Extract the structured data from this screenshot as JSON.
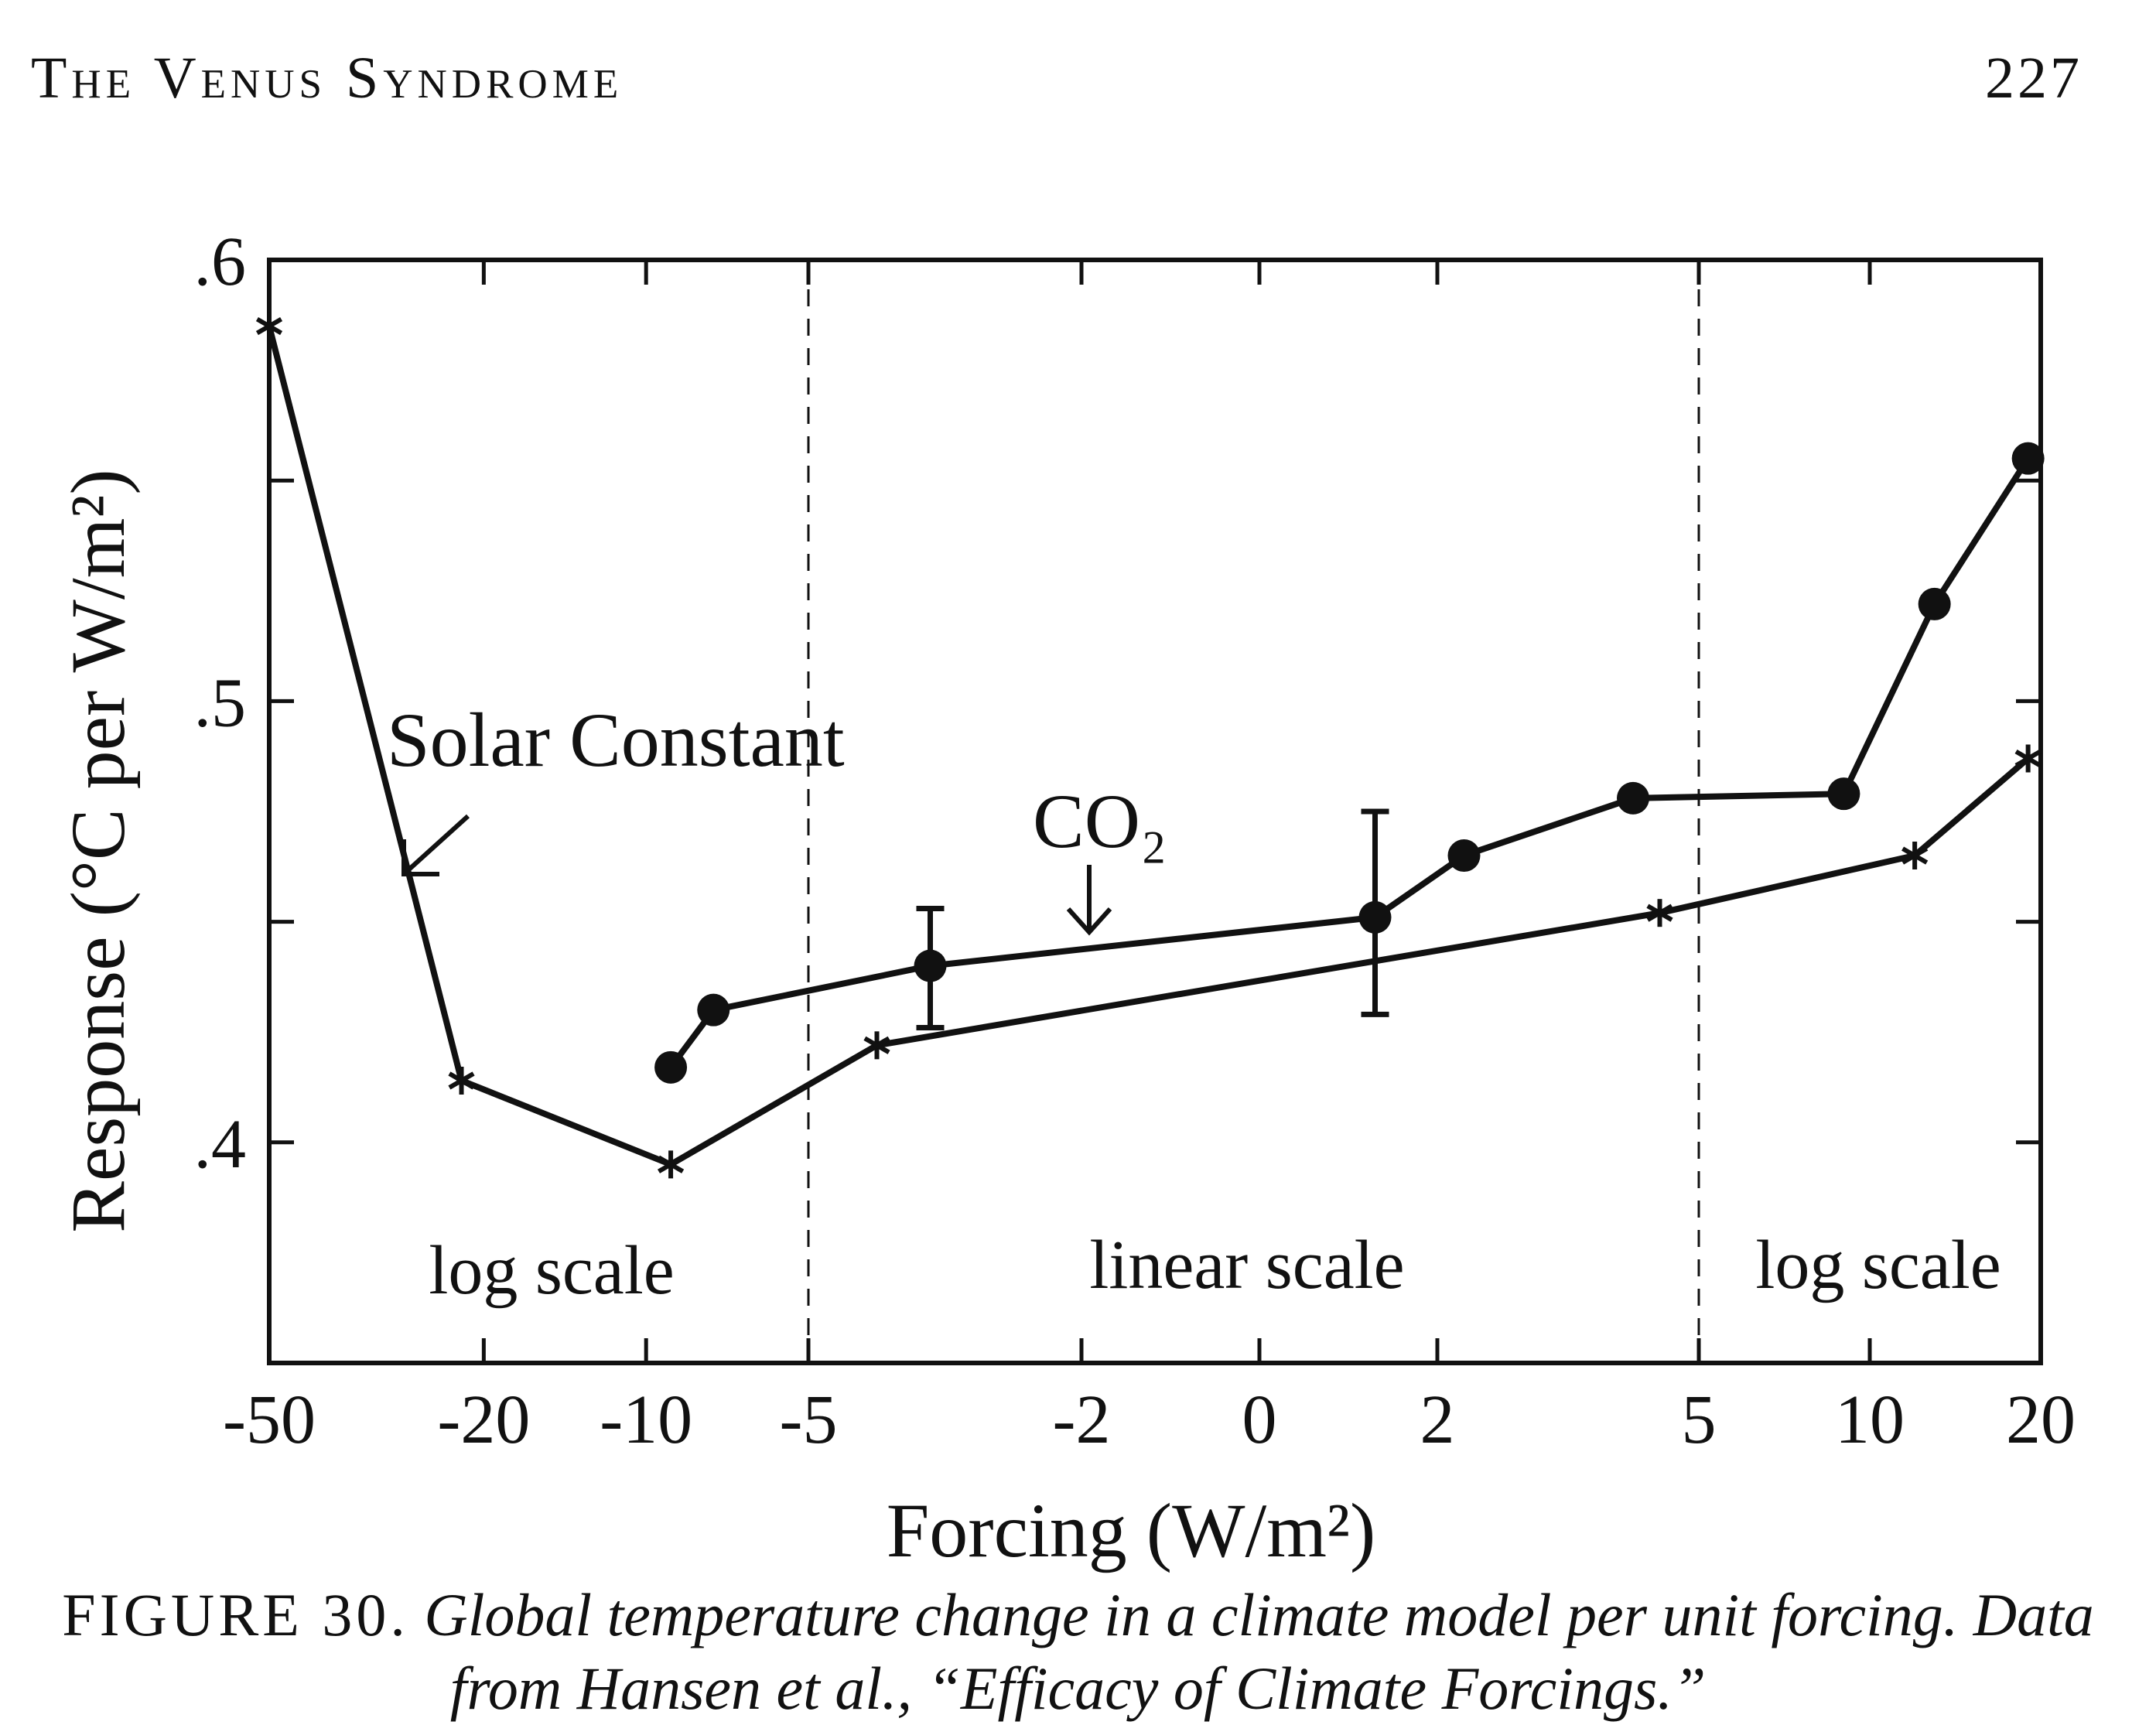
{
  "header": {
    "running_title": "The Venus Syndrome",
    "page_number": "227"
  },
  "chart_data": {
    "type": "line",
    "title": "",
    "xlabel": "Forcing (W/m²)",
    "ylabel": "Response (°C per W/m²)",
    "ylim": [
      0.35,
      0.6
    ],
    "y_ticks": [
      ".4",
      ".5",
      ".6"
    ],
    "x_tick_labels": [
      "-50",
      "-20",
      "-10",
      "-5",
      "-2",
      "0",
      "2",
      "5",
      "10",
      "20"
    ],
    "x_tick_values": [
      -50,
      -20,
      -10,
      -5,
      -2,
      0,
      2,
      5,
      10,
      20
    ],
    "x_axis_note": "piecewise: log scale for F ≤ -5 and F ≥ 5, linear scale between -5 and 5",
    "region_labels": [
      "log scale",
      "linear scale",
      "log scale"
    ],
    "grid": false,
    "series": [
      {
        "name": "Solar Constant",
        "marker": "asterisk",
        "x": [
          -50,
          -22,
          -9,
          -4.3,
          4.5,
          12,
          19
        ],
        "y": [
          0.585,
          0.414,
          0.395,
          0.422,
          0.452,
          0.465,
          0.487
        ]
      },
      {
        "name": "CO₂",
        "marker": "circle",
        "x": [
          -9,
          -7.5,
          -3.7,
          1.3,
          2.3,
          4.2,
          9,
          13,
          19
        ],
        "y": [
          0.417,
          0.43,
          0.44,
          0.451,
          0.465,
          0.478,
          0.479,
          0.522,
          0.555
        ],
        "error_bars": [
          {
            "x": -3.7,
            "low": 0.426,
            "high": 0.453
          },
          {
            "x": 1.3,
            "low": 0.429,
            "high": 0.475
          }
        ]
      }
    ]
  },
  "caption": {
    "label": "FIGURE 30.",
    "text": "Global temperature change in a climate model per unit forcing. Data from Hansen et al., “Efficacy of Climate Forcings.”"
  }
}
